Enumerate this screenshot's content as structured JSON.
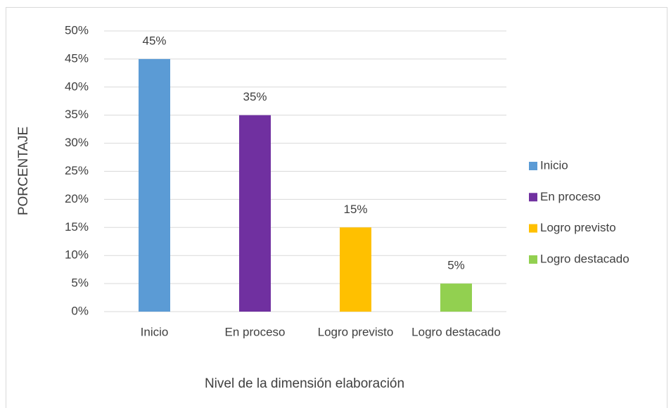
{
  "chart_data": {
    "type": "bar",
    "categories": [
      "Inicio",
      "En proceso",
      "Logro previsto",
      "Logro destacado"
    ],
    "values": [
      45,
      35,
      15,
      5
    ],
    "value_labels": [
      "45%",
      "35%",
      "15%",
      "5%"
    ],
    "colors": [
      "#5b9bd5",
      "#7030a0",
      "#ffc000",
      "#92d050"
    ],
    "ylim": [
      0,
      50
    ],
    "yticks": [
      {
        "value": 0,
        "label": "0%"
      },
      {
        "value": 5,
        "label": "5%"
      },
      {
        "value": 10,
        "label": "10%"
      },
      {
        "value": 15,
        "label": "15%"
      },
      {
        "value": 20,
        "label": "20%"
      },
      {
        "value": 25,
        "label": "25%"
      },
      {
        "value": 30,
        "label": "30%"
      },
      {
        "value": 35,
        "label": "35%"
      },
      {
        "value": 40,
        "label": "40%"
      },
      {
        "value": 45,
        "label": "45%"
      },
      {
        "value": 50,
        "label": "50%"
      }
    ],
    "ylabel": "PORCENTAJE",
    "xlabel": "Nivel de la dimensión elaboración",
    "grid": true,
    "legend": "right"
  }
}
